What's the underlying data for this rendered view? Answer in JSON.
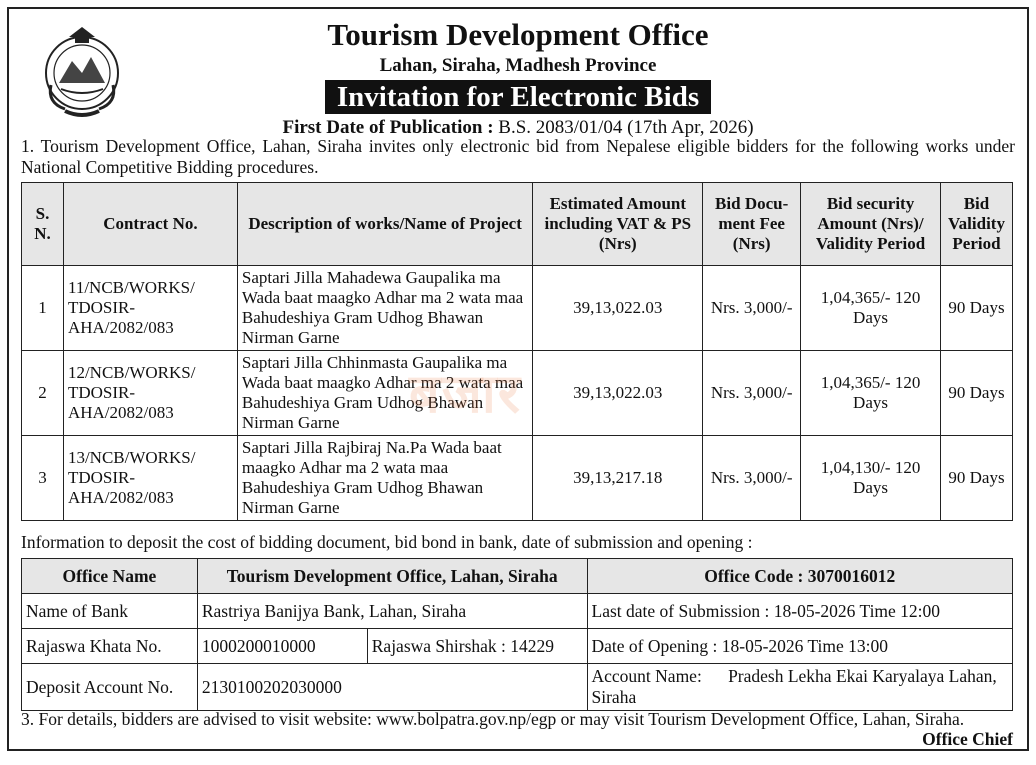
{
  "header": {
    "office_title": "Tourism Development Office",
    "office_address": "Lahan, Siraha, Madhesh Province",
    "notice_title": "Invitation for Electronic Bids",
    "publication_label": "First Date of Publication :",
    "publication_value": "B.S. 2083/01/04 (17th Apr, 2026)"
  },
  "emblem": {
    "icon": "nepal-government-emblem-icon"
  },
  "intro": "1. Tourism Development Office, Lahan, Siraha invites only electronic bid from Nepalese eligible bidders for the following works under National Competitive Bidding procedures.",
  "bids_table": {
    "headers": {
      "sn": "S. N.",
      "contract": "Contract No.",
      "description": "Description of works/Name of Project",
      "amount": "Estimated Amount including VAT & PS (Nrs)",
      "fee": "Bid Docu-ment Fee (Nrs)",
      "security": "Bid security Amount (Nrs)/ Validity Period",
      "validity": "Bid Validity Period"
    },
    "rows": [
      {
        "sn": "1",
        "contract": "11/NCB/WORKS/ TDOSIR-AHA/2082/083",
        "description": "Saptari Jilla Mahadewa Gaupalika ma Wada baat maagko Adhar ma 2 wata maa Bahudeshiya Gram Udhog Bhawan Nirman Garne",
        "amount": "39,13,022.03",
        "fee": "Nrs. 3,000/-",
        "security": "1,04,365/- 120 Days",
        "validity": "90 Days"
      },
      {
        "sn": "2",
        "contract": "12/NCB/WORKS/ TDOSIR-AHA/2082/083",
        "description": "Saptari Jilla Chhinmasta Gaupalika ma Wada baat maagko Adhar ma 2 wata maa Bahudeshiya Gram Udhog Bhawan Nirman Garne",
        "amount": "39,13,022.03",
        "fee": "Nrs. 3,000/-",
        "security": "1,04,365/- 120 Days",
        "validity": "90 Days"
      },
      {
        "sn": "3",
        "contract": "13/NCB/WORKS/ TDOSIR-AHA/2082/083",
        "description": "Saptari Jilla Rajbiraj Na.Pa Wada baat maagko Adhar ma 2 wata maa Bahudeshiya Gram Udhog Bhawan Nirman Garne",
        "amount": "39,13,217.18",
        "fee": "Nrs. 3,000/-",
        "security": "1,04,130/- 120 Days",
        "validity": "90 Days"
      }
    ]
  },
  "watermark": "बजार",
  "info_line": "Information to deposit the cost of bidding document, bid bond in bank, date of submission and opening :",
  "office_table": {
    "office_name_label": "Office Name",
    "office_name_value": "Tourism Development Office, Lahan, Siraha",
    "office_code": "Office Code : 3070016012",
    "bank_label": "Name of Bank",
    "bank_value": "Rastriya Banijya Bank, Lahan, Siraha",
    "submission": "Last date of Submission : 18-05-2026   Time 12:00",
    "khata_label": "Rajaswa Khata No.",
    "khata_value": "1000200010000",
    "shirshak": "Rajaswa Shirshak : 14229",
    "opening": "Date of Opening : 18-05-2026   Time 13:00",
    "deposit_label": "Deposit Account No.",
    "deposit_value": "2130100202030000",
    "account_name_label": "Account Name:",
    "account_name_value": "Pradesh Lekha Ekai Karyalaya Lahan, Siraha"
  },
  "footer": {
    "details": "3. For details, bidders are advised to visit website: www.bolpatra.gov.np/egp or may visit Tourism Development Office, Lahan, Siraha.",
    "signatory": "Office Chief"
  }
}
